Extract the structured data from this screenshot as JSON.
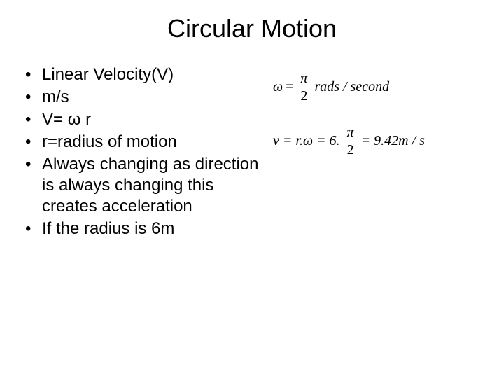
{
  "title": "Circular Motion",
  "bullets": [
    "Linear Velocity(V)",
    "m/s",
    "V= ω r",
    "r=radius of motion",
    "Always changing as direction is always changing this creates acceleration",
    "If the radius is 6m"
  ],
  "equations": {
    "eq1": {
      "lhs_var": "ω",
      "frac_num": "π",
      "frac_den": "2",
      "rhs_unit": "rads / second"
    },
    "eq2": {
      "prefix": "v = r.ω = 6.",
      "frac_num": "π",
      "frac_den": "2",
      "result": "= 9.42m / s"
    }
  },
  "colors": {
    "background": "#ffffff",
    "text": "#000000"
  },
  "fonts": {
    "body_family": "Arial",
    "equation_family": "Times New Roman",
    "title_size": 36,
    "bullet_size": 24,
    "equation_size": 20
  }
}
